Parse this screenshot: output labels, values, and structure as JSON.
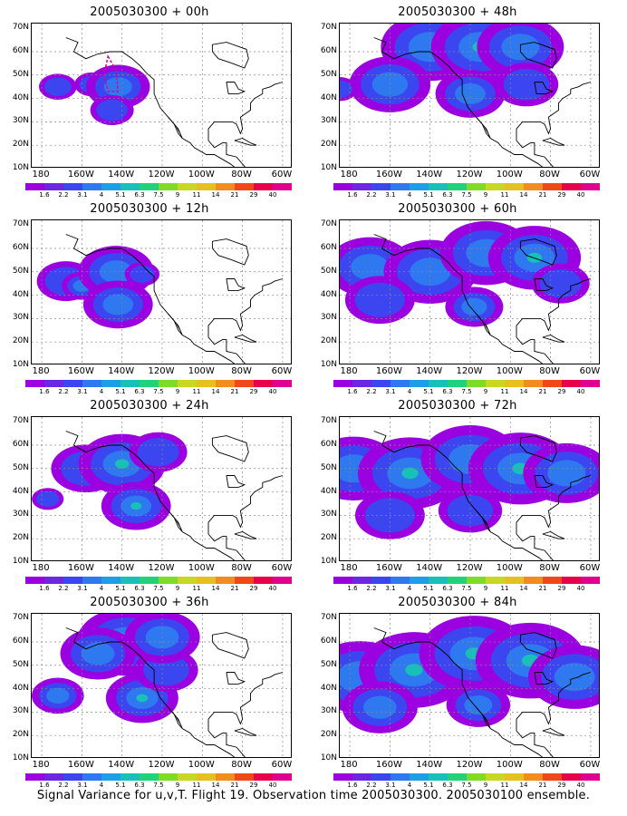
{
  "footer": "Signal Variance for u,v,T. Flight 19. Observation time 2005030300. 2005030100 ensemble.",
  "axes": {
    "lat_labels": [
      "70N",
      "60N",
      "50N",
      "40N",
      "30N",
      "20N",
      "10N"
    ],
    "lon_labels": [
      "180",
      "160W",
      "140W",
      "120W",
      "100W",
      "80W",
      "60W"
    ]
  },
  "colorbar": {
    "labels": [
      "1.6",
      "2.2",
      "3.1",
      "4",
      "5.1",
      "6.3",
      "7.5",
      "9",
      "11",
      "14",
      "21",
      "29",
      "40"
    ],
    "colors": [
      "#9a00e0",
      "#6c28e0",
      "#3c46f0",
      "#2e78f0",
      "#1e9ee6",
      "#18c0b8",
      "#22d27a",
      "#7edc28",
      "#c8d822",
      "#e6c020",
      "#f28c20",
      "#f04818",
      "#e8004a",
      "#e00090"
    ]
  },
  "panels": [
    {
      "title": "2005030300 + 00h"
    },
    {
      "title": "2005030300 + 12h"
    },
    {
      "title": "2005030300 + 24h"
    },
    {
      "title": "2005030300 + 36h"
    },
    {
      "title": "2005030300 + 48h"
    },
    {
      "title": "2005030300 + 60h"
    },
    {
      "title": "2005030300 + 72h"
    },
    {
      "title": "2005030300 + 84h"
    }
  ],
  "fields": [
    [
      {
        "lon": -172,
        "lat": 45,
        "s": 1.3,
        "v": 1
      },
      {
        "lon": -155,
        "lat": 46,
        "s": 1.2,
        "v": 1
      },
      {
        "lon": -142,
        "lat": 45,
        "s": 2.2,
        "v": 2
      },
      {
        "lon": -145,
        "lat": 35,
        "s": 1.5,
        "v": 1
      }
    ],
    [
      {
        "lon": -168,
        "lat": 46,
        "s": 2.0,
        "v": 1
      },
      {
        "lon": -160,
        "lat": 44,
        "s": 1.4,
        "v": 2
      },
      {
        "lon": -143,
        "lat": 50,
        "s": 2.6,
        "v": 2
      },
      {
        "lon": -142,
        "lat": 36,
        "s": 2.4,
        "v": 2
      },
      {
        "lon": -130,
        "lat": 49,
        "s": 1.2,
        "v": 1
      }
    ],
    [
      {
        "lon": -158,
        "lat": 50,
        "s": 2.4,
        "v": 1
      },
      {
        "lon": -140,
        "lat": 52,
        "s": 3.0,
        "v": 3
      },
      {
        "lon": -133,
        "lat": 34,
        "s": 2.4,
        "v": 3
      },
      {
        "lon": -122,
        "lat": 57,
        "s": 2.0,
        "v": 1
      },
      {
        "lon": -177,
        "lat": 37,
        "s": 1.1,
        "v": 1
      }
    ],
    [
      {
        "lon": -138,
        "lat": 60,
        "s": 3.4,
        "v": 3
      },
      {
        "lon": -152,
        "lat": 55,
        "s": 2.6,
        "v": 2
      },
      {
        "lon": -172,
        "lat": 37,
        "s": 1.8,
        "v": 2
      },
      {
        "lon": -130,
        "lat": 36,
        "s": 2.5,
        "v": 3
      },
      {
        "lon": -118,
        "lat": 48,
        "s": 2.2,
        "v": 1
      },
      {
        "lon": -120,
        "lat": 62,
        "s": 2.6,
        "v": 2
      }
    ],
    [
      {
        "lon": -140,
        "lat": 62,
        "s": 3.4,
        "v": 2
      },
      {
        "lon": -115,
        "lat": 62,
        "s": 3.4,
        "v": 3
      },
      {
        "lon": -95,
        "lat": 62,
        "s": 3.0,
        "v": 2
      },
      {
        "lon": -160,
        "lat": 46,
        "s": 2.8,
        "v": 2
      },
      {
        "lon": -120,
        "lat": 42,
        "s": 2.4,
        "v": 2
      },
      {
        "lon": -92,
        "lat": 46,
        "s": 2.2,
        "v": 1
      },
      {
        "lon": -185,
        "lat": 44,
        "s": 1.2,
        "v": 1
      }
    ],
    [
      {
        "lon": -170,
        "lat": 52,
        "s": 3.0,
        "v": 2
      },
      {
        "lon": -140,
        "lat": 50,
        "s": 3.2,
        "v": 2
      },
      {
        "lon": -112,
        "lat": 58,
        "s": 3.2,
        "v": 2
      },
      {
        "lon": -88,
        "lat": 56,
        "s": 3.2,
        "v": 3
      },
      {
        "lon": -165,
        "lat": 38,
        "s": 2.4,
        "v": 1
      },
      {
        "lon": -118,
        "lat": 35,
        "s": 2.0,
        "v": 2
      },
      {
        "lon": -75,
        "lat": 45,
        "s": 2.0,
        "v": 1
      }
    ],
    [
      {
        "lon": -178,
        "lat": 50,
        "s": 3.2,
        "v": 2
      },
      {
        "lon": -150,
        "lat": 48,
        "s": 3.6,
        "v": 3
      },
      {
        "lon": -120,
        "lat": 54,
        "s": 3.4,
        "v": 2
      },
      {
        "lon": -95,
        "lat": 50,
        "s": 3.6,
        "v": 3
      },
      {
        "lon": -72,
        "lat": 48,
        "s": 3.0,
        "v": 2
      },
      {
        "lon": -160,
        "lat": 30,
        "s": 2.4,
        "v": 1
      },
      {
        "lon": -120,
        "lat": 32,
        "s": 2.2,
        "v": 1
      }
    ],
    [
      {
        "lon": -175,
        "lat": 45,
        "s": 3.6,
        "v": 2
      },
      {
        "lon": -148,
        "lat": 48,
        "s": 3.8,
        "v": 3
      },
      {
        "lon": -118,
        "lat": 55,
        "s": 3.8,
        "v": 3
      },
      {
        "lon": -90,
        "lat": 52,
        "s": 3.8,
        "v": 3
      },
      {
        "lon": -68,
        "lat": 45,
        "s": 3.2,
        "v": 2
      },
      {
        "lon": -165,
        "lat": 32,
        "s": 2.6,
        "v": 2
      },
      {
        "lon": -116,
        "lat": 33,
        "s": 2.2,
        "v": 2
      }
    ]
  ]
}
